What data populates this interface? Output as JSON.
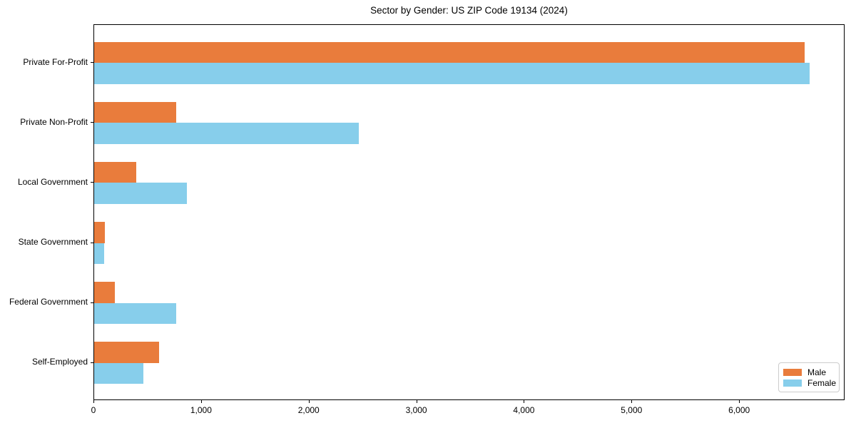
{
  "chart_data": {
    "type": "bar",
    "orientation": "horizontal",
    "title": "Sector by Gender: US ZIP Code 19134 (2024)",
    "xlabel": "",
    "ylabel": "",
    "categories": [
      "Private For-Profit",
      "Private Non-Profit",
      "Local Government",
      "State Government",
      "Federal Government",
      "Self-Employed"
    ],
    "series": [
      {
        "name": "Male",
        "color": "#e97c3c",
        "values": [
          6600,
          760,
          390,
          100,
          195,
          600
        ]
      },
      {
        "name": "Female",
        "color": "#87ceeb",
        "values": [
          6650,
          2460,
          860,
          95,
          760,
          460
        ]
      }
    ],
    "xlim": [
      0,
      6980
    ],
    "x_ticks": [
      0,
      1000,
      2000,
      3000,
      4000,
      5000,
      6000
    ],
    "x_tick_labels": [
      "0",
      "1,000",
      "2,000",
      "3,000",
      "4,000",
      "5,000",
      "6,000"
    ],
    "grid": false,
    "legend_position": "lower right",
    "background_color": "#ffffff",
    "spine_color": "#000000"
  }
}
